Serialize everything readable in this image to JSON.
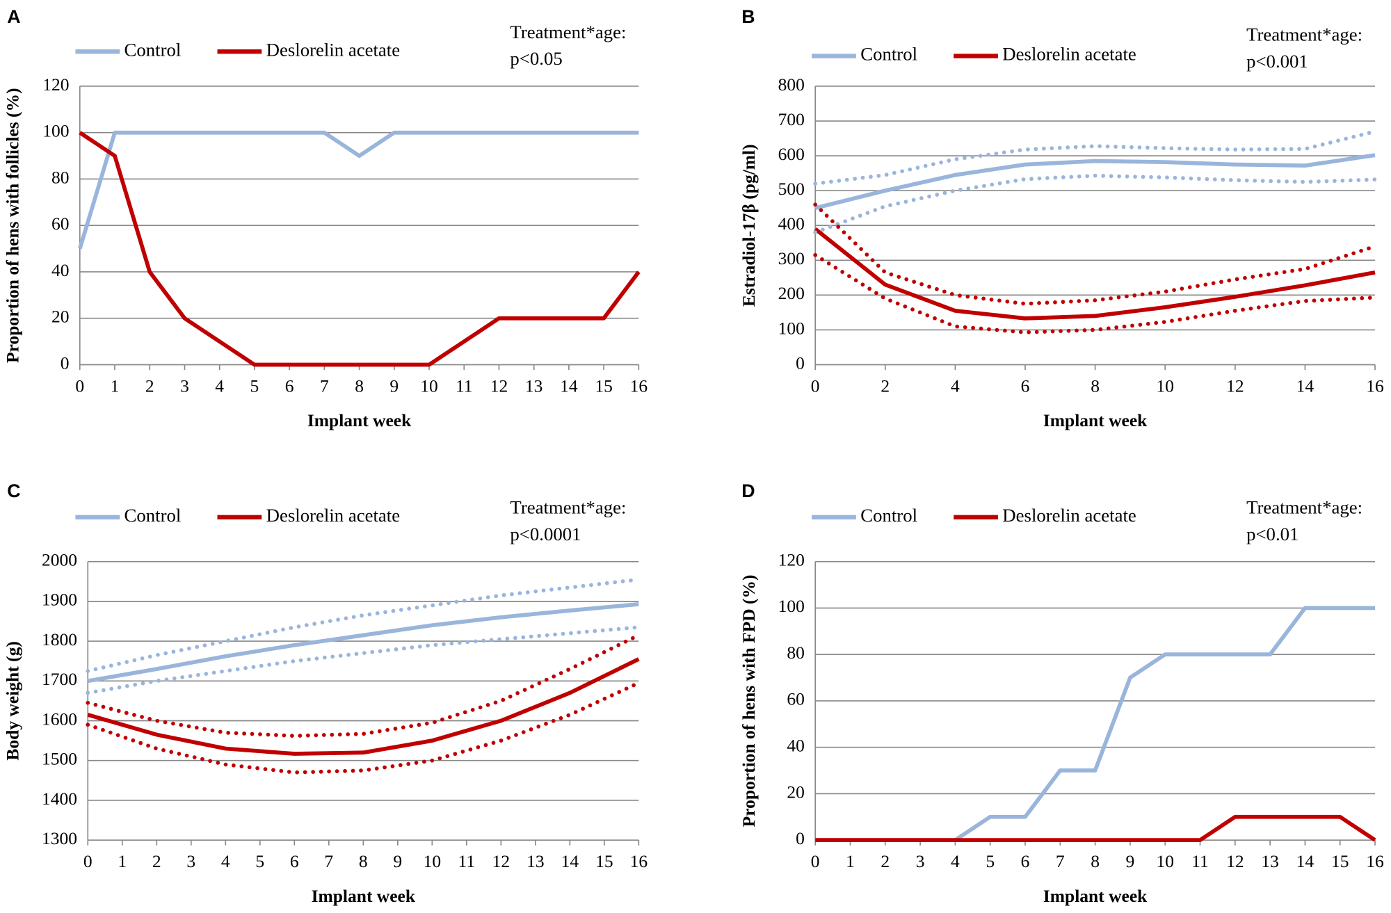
{
  "chart_data": [
    {
      "type": "line",
      "panel": "A",
      "annotation": [
        "Treatment*age:",
        "p<0.05"
      ],
      "xlabel": "Implant week",
      "ylabel": "Proportion of hens with follicles (%)",
      "x": [
        0,
        1,
        2,
        3,
        4,
        5,
        6,
        7,
        8,
        9,
        10,
        11,
        12,
        13,
        14,
        15,
        16
      ],
      "xlim": [
        0,
        16
      ],
      "xticks": [
        0,
        1,
        2,
        3,
        4,
        5,
        6,
        7,
        8,
        9,
        10,
        11,
        12,
        13,
        14,
        15,
        16
      ],
      "ylim": [
        0,
        120
      ],
      "yticks": [
        0,
        20,
        40,
        60,
        80,
        100,
        120
      ],
      "grid": true,
      "series": [
        {
          "name": "Control",
          "color": "#9ab5dc",
          "values": [
            50,
            100,
            100,
            100,
            100,
            100,
            100,
            100,
            90,
            100,
            100,
            100,
            100,
            100,
            100,
            100,
            100
          ]
        },
        {
          "name": "Deslorelin acetate",
          "color": "#c00000",
          "values": [
            100,
            90,
            40,
            20,
            10,
            0,
            0,
            0,
            0,
            0,
            0,
            10,
            20,
            20,
            20,
            20,
            40
          ]
        }
      ]
    },
    {
      "type": "line",
      "panel": "B",
      "annotation": [
        "Treatment*age:",
        "p<0.001"
      ],
      "xlabel": "Implant week",
      "ylabel": "Estradiol-17β (pg/ml)",
      "x": [
        0,
        2,
        4,
        6,
        8,
        10,
        12,
        14,
        16
      ],
      "xlim": [
        0,
        16
      ],
      "xticks": [
        0,
        2,
        4,
        6,
        8,
        10,
        12,
        14,
        16
      ],
      "ylim": [
        0,
        800
      ],
      "yticks": [
        0,
        100,
        200,
        300,
        400,
        500,
        600,
        700,
        800
      ],
      "grid": true,
      "series": [
        {
          "name": "Control",
          "color": "#9ab5dc",
          "values": [
            450,
            500,
            545,
            575,
            585,
            582,
            575,
            572,
            602
          ]
        },
        {
          "name": "Deslorelin acetate",
          "color": "#c00000",
          "values": [
            390,
            230,
            155,
            133,
            140,
            165,
            195,
            228,
            265
          ]
        },
        {
          "color": "#9ab5dc",
          "style": "dotted",
          "values": [
            520,
            545,
            590,
            618,
            628,
            622,
            618,
            620,
            670
          ]
        },
        {
          "color": "#9ab5dc",
          "style": "dotted",
          "values": [
            380,
            455,
            500,
            533,
            543,
            538,
            530,
            525,
            532
          ]
        },
        {
          "color": "#c00000",
          "style": "dotted",
          "values": [
            460,
            265,
            200,
            175,
            185,
            210,
            245,
            275,
            340
          ]
        },
        {
          "color": "#c00000",
          "style": "dotted",
          "values": [
            315,
            190,
            110,
            93,
            100,
            123,
            155,
            183,
            193
          ]
        }
      ]
    },
    {
      "type": "line",
      "panel": "C",
      "annotation": [
        "Treatment*age:",
        "p<0.0001"
      ],
      "xlabel": "Implant week",
      "ylabel": "Body weight (g)",
      "x": [
        0,
        2,
        4,
        6,
        8,
        10,
        12,
        14,
        16
      ],
      "xlim": [
        0,
        16
      ],
      "xticks": [
        0,
        1,
        2,
        3,
        4,
        5,
        6,
        7,
        8,
        9,
        10,
        11,
        12,
        13,
        14,
        15,
        16
      ],
      "ylim": [
        1300,
        2000
      ],
      "yticks": [
        1300,
        1400,
        1500,
        1600,
        1700,
        1800,
        1900,
        2000
      ],
      "grid": true,
      "series": [
        {
          "name": "Control",
          "color": "#9ab5dc",
          "values": [
            1700,
            1730,
            1762,
            1790,
            1815,
            1840,
            1860,
            1877,
            1893
          ]
        },
        {
          "name": "Deslorelin acetate",
          "color": "#c00000",
          "values": [
            1615,
            1565,
            1530,
            1517,
            1520,
            1550,
            1600,
            1670,
            1755
          ]
        },
        {
          "color": "#9ab5dc",
          "style": "dotted",
          "values": [
            1725,
            1765,
            1800,
            1835,
            1865,
            1890,
            1915,
            1935,
            1955
          ]
        },
        {
          "color": "#9ab5dc",
          "style": "dotted",
          "values": [
            1670,
            1700,
            1725,
            1750,
            1770,
            1790,
            1805,
            1820,
            1835
          ]
        },
        {
          "color": "#c00000",
          "style": "dotted",
          "values": [
            1645,
            1600,
            1570,
            1562,
            1567,
            1595,
            1650,
            1730,
            1815
          ]
        },
        {
          "color": "#c00000",
          "style": "dotted",
          "values": [
            1590,
            1530,
            1490,
            1470,
            1475,
            1500,
            1550,
            1615,
            1695
          ]
        }
      ]
    },
    {
      "type": "line",
      "panel": "D",
      "annotation": [
        "Treatment*age:",
        "p<0.01"
      ],
      "xlabel": "Implant week",
      "ylabel": "Proportion of hens with FPD (%)",
      "x": [
        0,
        1,
        2,
        3,
        4,
        5,
        6,
        7,
        8,
        9,
        10,
        11,
        12,
        13,
        14,
        15,
        16
      ],
      "xlim": [
        0,
        16
      ],
      "xticks": [
        0,
        1,
        2,
        3,
        4,
        5,
        6,
        7,
        8,
        9,
        10,
        11,
        12,
        13,
        14,
        15,
        16
      ],
      "ylim": [
        0,
        120
      ],
      "yticks": [
        0,
        20,
        40,
        60,
        80,
        100,
        120
      ],
      "grid": true,
      "series": [
        {
          "name": "Control",
          "color": "#9ab5dc",
          "values": [
            0,
            0,
            0,
            0,
            0,
            10,
            10,
            30,
            30,
            70,
            80,
            80,
            80,
            80,
            100,
            100,
            100
          ]
        },
        {
          "name": "Deslorelin acetate",
          "color": "#c00000",
          "values": [
            0,
            0,
            0,
            0,
            0,
            0,
            0,
            0,
            0,
            0,
            0,
            0,
            10,
            10,
            10,
            10,
            0
          ]
        }
      ]
    }
  ]
}
